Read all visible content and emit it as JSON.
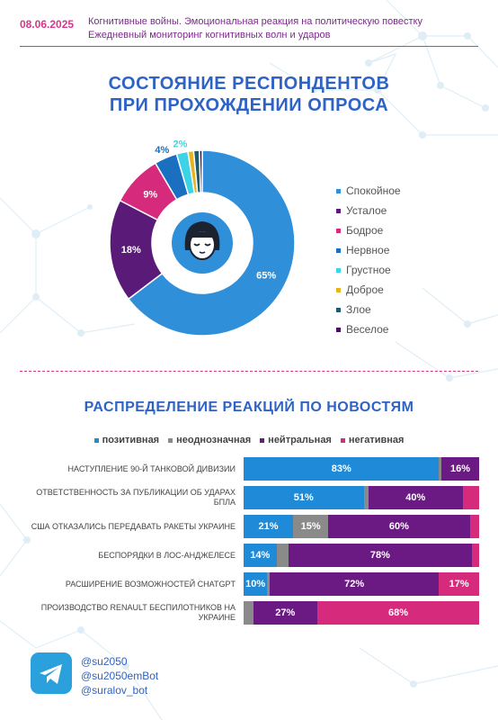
{
  "header": {
    "date": "08.06.2025",
    "line1": "Когнитивные войны. Эмоциональная реакция на политическую повестку",
    "line2": "Ежедневный мониторинг когнитивных волн и ударов"
  },
  "section1": {
    "title_line1": "СОСТОЯНИЕ РЕСПОНДЕНТОВ",
    "title_line2": "ПРИ ПРОХОЖДЕНИИ ОПРОСА"
  },
  "section2": {
    "title": "РАСПРЕДЕЛЕНИЕ РЕАКЦИЙ ПО НОВОСТЯМ"
  },
  "chart_data": [
    {
      "type": "pie",
      "variant": "donut",
      "categories": [
        "Спокойное",
        "Усталое",
        "Бодрое",
        "Нервное",
        "Грустное",
        "Доброе",
        "Злое",
        "Веселое"
      ],
      "values": [
        65,
        18,
        9,
        4,
        2,
        1,
        1,
        0.5
      ],
      "labels": [
        "65%",
        "18%",
        "9%",
        "4%",
        "2%",
        "",
        "",
        ""
      ],
      "colors": [
        "#2f8fd8",
        "#5a1a78",
        "#d62b7c",
        "#1a6fc0",
        "#3dd3e6",
        "#e6b422",
        "#1f5a6e",
        "#4a1060"
      ],
      "legend_position": "right",
      "center_icon": "calm-face-icon"
    },
    {
      "type": "bar",
      "orientation": "horizontal",
      "stacked": true,
      "categories": [
        "НАСТУПЛЕНИЕ 90-Й ТАНКОВОЙ ДИВИЗИИ",
        "ОТВЕТСТВЕННОСТЬ ЗА ПУБЛИКАЦИИ ОБ УДАРАХ БПЛА",
        "США ОТКАЗАЛИСЬ ПЕРЕДАВАТЬ РАКЕТЫ УКРАИНЕ",
        "БЕСПОРЯДКИ В ЛОС-АНДЖЕЛЕСЕ",
        "РАСШИРЕНИЕ ВОЗМОЖНОСТЕЙ CHATGPT",
        "ПРОИЗВОДСТВО RENAULT БЕСПИЛОТНИКОВ НА УКРАИНЕ"
      ],
      "series": [
        {
          "name": "позитивная",
          "color": "#1f8ad8",
          "values": [
            83,
            51,
            21,
            14,
            10,
            0
          ],
          "labels": [
            "83%",
            "51%",
            "21%",
            "14%",
            "10%",
            ""
          ]
        },
        {
          "name": "неоднозначная",
          "color": "#8a8a8a",
          "values": [
            1,
            2,
            15,
            5,
            1,
            4
          ],
          "labels": [
            "",
            "",
            "15%",
            "",
            "",
            ""
          ]
        },
        {
          "name": "нейтральная",
          "color": "#6a1a82",
          "values": [
            16,
            40,
            60,
            78,
            72,
            27
          ],
          "labels": [
            "16%",
            "40%",
            "60%",
            "78%",
            "72%",
            "27%"
          ]
        },
        {
          "name": "негативная",
          "color": "#d62b7c",
          "values": [
            0,
            7,
            4,
            3,
            17,
            68
          ],
          "labels": [
            "",
            "",
            "",
            "",
            "17%",
            "68%"
          ]
        }
      ],
      "legend_position": "top",
      "xlim": [
        0,
        100
      ]
    }
  ],
  "footer": {
    "icon": "telegram-icon",
    "handles": [
      "@su2050",
      "@su2050emBot",
      "@suralov_bot"
    ]
  }
}
